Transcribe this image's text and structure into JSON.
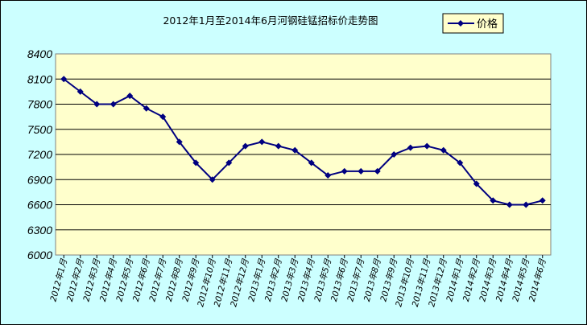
{
  "chart_data": {
    "type": "line",
    "title": "2012年1月至2014年6月河钢硅锰招标价走势图",
    "xlabel": "",
    "ylabel": "",
    "ylim": [
      6000,
      8400
    ],
    "ytick_labels": [
      "8400",
      "8100",
      "7800",
      "7500",
      "7200",
      "6900",
      "6600",
      "6300",
      "6000"
    ],
    "grid": "horizontal",
    "legend_position": "top-right",
    "categories": [
      "2012年1月",
      "2012年2月",
      "2012年3月",
      "2012年4月",
      "2012年5月",
      "2012年6月",
      "2012年7月",
      "2012年8月",
      "2012年9月",
      "2012年10月",
      "2012年11月",
      "2012年12月",
      "2013年1月",
      "2013年2月",
      "2013年3月",
      "2013年4月",
      "2013年5月",
      "2013年6月",
      "2013年7月",
      "2013年8月",
      "2013年9月",
      "2013年10月",
      "2013年11月",
      "2013年12月",
      "2014年1月",
      "2014年2月",
      "2014年3月",
      "2014年4月",
      "2014年5月",
      "2014年6月"
    ],
    "series": [
      {
        "name": "价格",
        "color": "#000080",
        "values": [
          8100,
          7950,
          7800,
          7800,
          7900,
          7750,
          7650,
          7350,
          7100,
          6900,
          7100,
          7300,
          7350,
          7300,
          7250,
          7100,
          6950,
          7000,
          7000,
          7000,
          7200,
          7280,
          7300,
          7250,
          7100,
          6850,
          6650,
          6600,
          6600,
          6650
        ]
      }
    ]
  },
  "colors": {
    "plot_background": "#ffffcc",
    "chart_background": "#ccffff",
    "legend_background": "#ffffcc",
    "line": "#000080"
  }
}
